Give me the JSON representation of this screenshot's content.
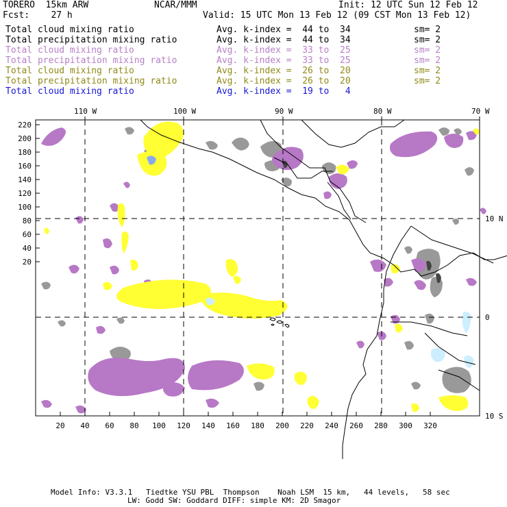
{
  "header": {
    "model": "TORERO  15km ARW",
    "center": "NCAR/MMM",
    "init": "Init: 12 UTC Sun 12 Feb 12",
    "fcst": "Fcst:    27 h",
    "valid": "Valid: 15 UTC Mon 13 Feb 12 (09 CST Mon 13 Feb 12)"
  },
  "legend": [
    {
      "field": "Total cloud mixing ratio",
      "index": "Avg. k-index =  44 to  34",
      "sm": "sm= 2",
      "color": "#000000"
    },
    {
      "field": "Total precipitation mixing ratio",
      "index": "Avg. k-index =  44 to  34",
      "sm": "sm= 2",
      "color": "#000000"
    },
    {
      "field": "Total cloud mixing ratio",
      "index": "Avg. k-index =  33 to  25",
      "sm": "sm= 2",
      "color": "#b77fc6"
    },
    {
      "field": "Total precipitation mixing ratio",
      "index": "Avg. k-index =  33 to  25",
      "sm": "sm= 2",
      "color": "#b77fc6"
    },
    {
      "field": "Total cloud mixing ratio",
      "index": "Avg. k-index =  26 to  20",
      "sm": "sm= 2",
      "color": "#8f8a16"
    },
    {
      "field": "Total precipitation mixing ratio",
      "index": "Avg. k-index =  26 to  20",
      "sm": "sm= 2",
      "color": "#8f8a16"
    },
    {
      "field": "Total cloud mixing ratio",
      "index": "Avg. k-index =  19 to   4",
      "sm": "",
      "color": "#1616d8"
    }
  ],
  "map": {
    "lon_labels": [
      "110 W",
      "100 W",
      "90 W",
      "80 W",
      "70 W"
    ],
    "lat_labels": [
      "10 N",
      "0",
      "10 S"
    ],
    "y_ticks": [
      "220",
      "200",
      "180",
      "160",
      "140",
      "120",
      "100",
      "80",
      "60",
      "40",
      "20"
    ],
    "x_ticks": [
      "20",
      "40",
      "60",
      "80",
      "100",
      "120",
      "140",
      "160",
      "180",
      "200",
      "220",
      "240",
      "260",
      "280",
      "300",
      "320"
    ],
    "colors": {
      "gray_cloud": "#999999",
      "purple": "#b778c6",
      "yellow": "#ffff33",
      "light_blue": "#cceeff",
      "blue": "#8aa8ee",
      "dark": "#444444"
    }
  },
  "footer": {
    "line1": "Model Info: V3.3.1   Tiedtke YSU PBL  Thompson    Noah LSM  15 km,   44 levels,   58 sec",
    "line2": "LW: Godd SW: Goddard DIFF: simple KM: 2D Smagor"
  }
}
